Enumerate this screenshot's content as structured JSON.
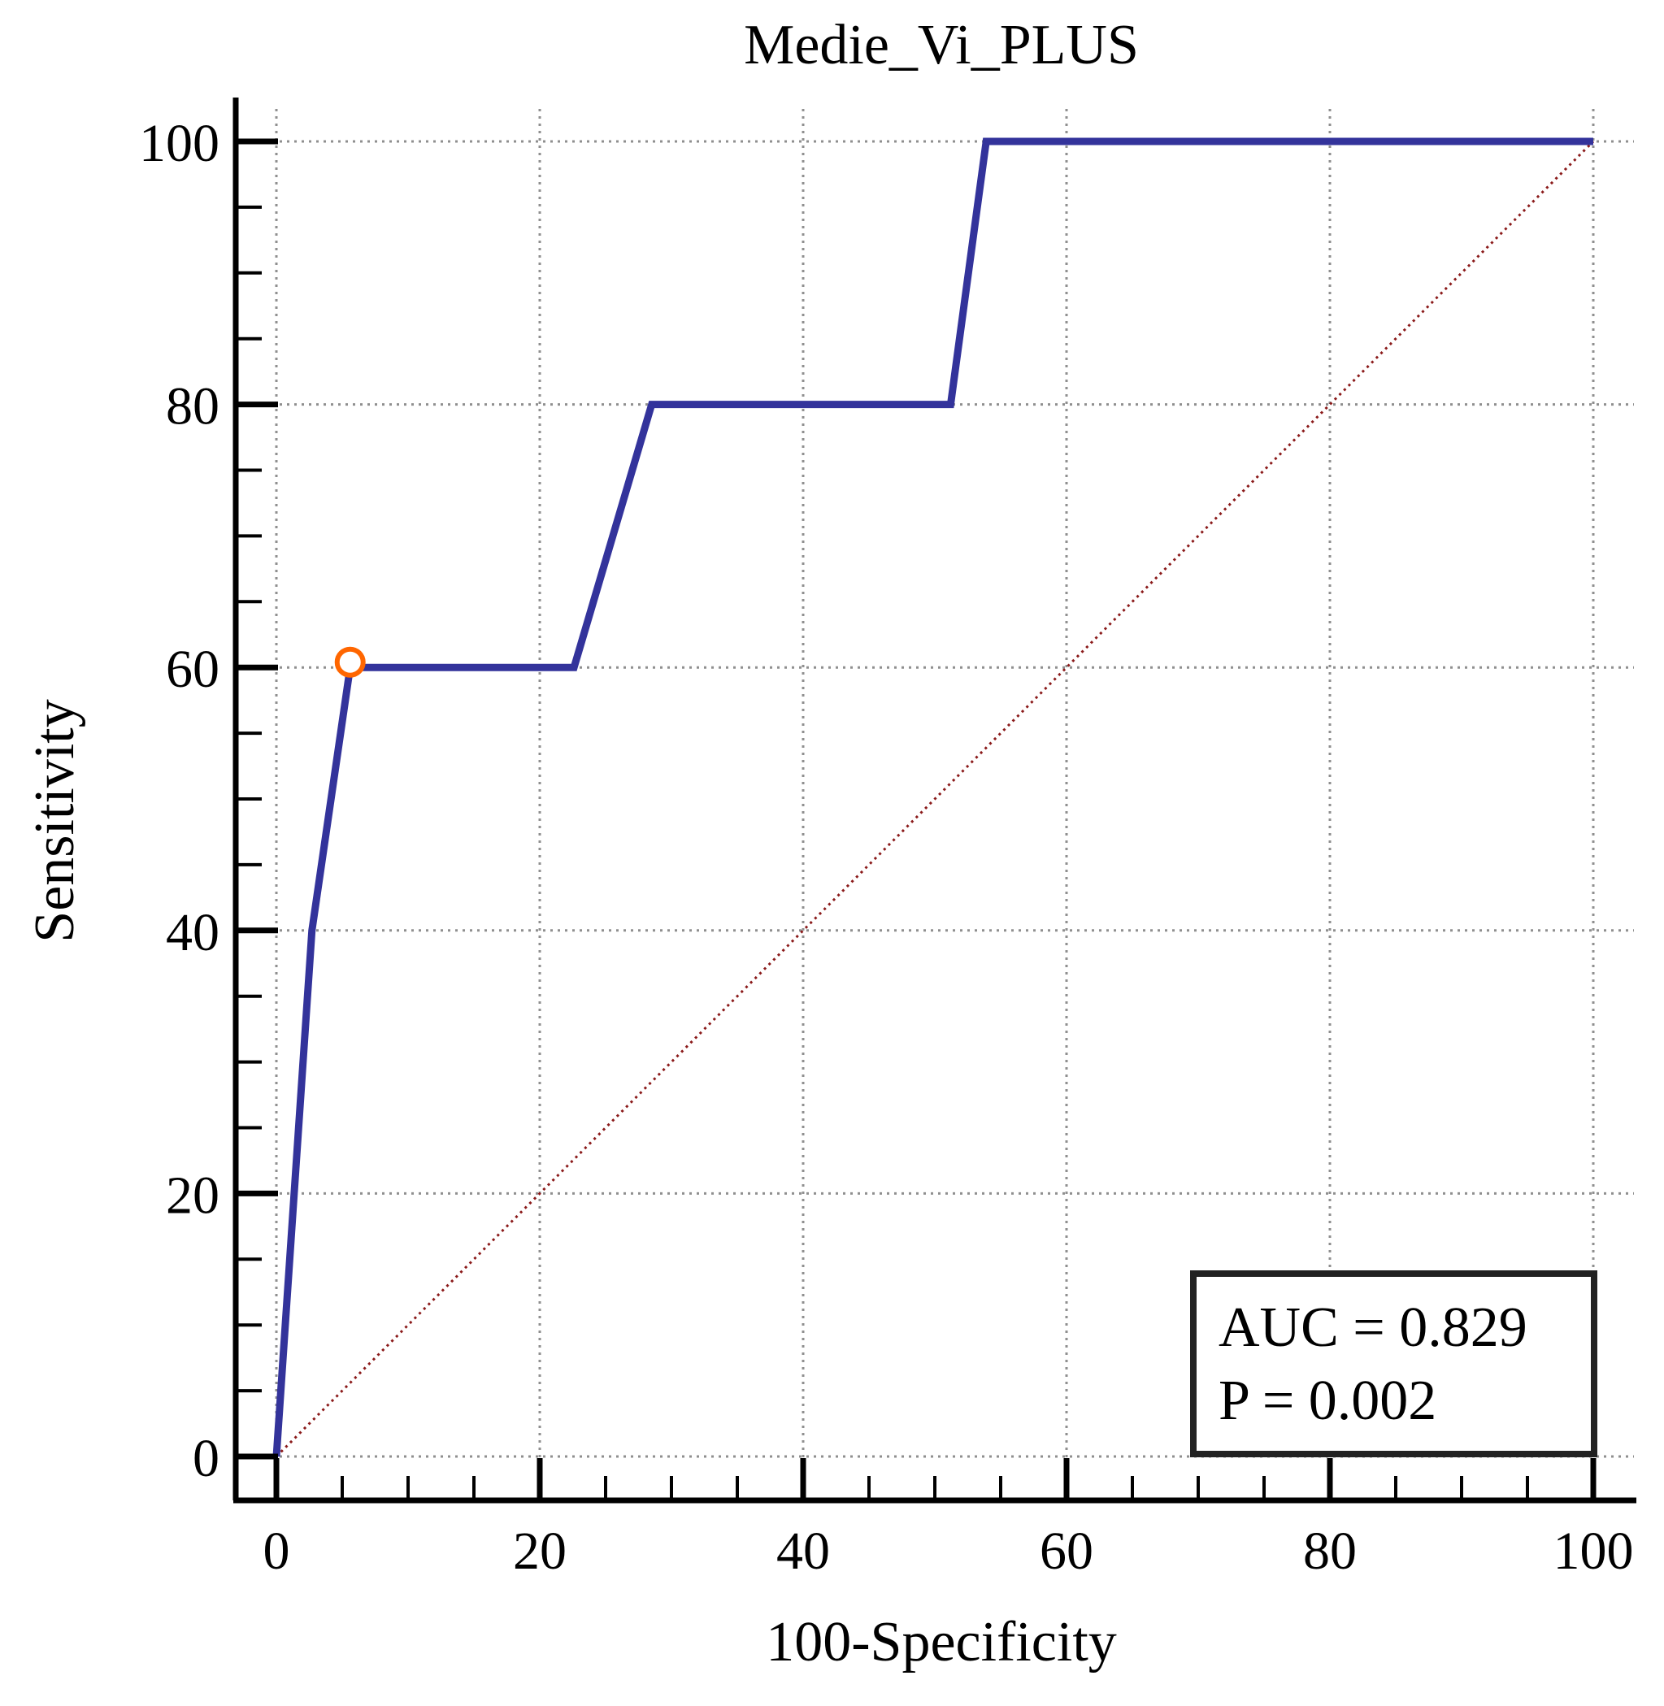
{
  "chart_data": {
    "type": "line",
    "title": "Medie_Vi_PLUS",
    "xlabel": "100-Specificity",
    "ylabel": "Sensitivity",
    "xlim": [
      0,
      100
    ],
    "ylim": [
      0,
      100
    ],
    "xticks": [
      "0",
      "20",
      "40",
      "60",
      "80",
      "100"
    ],
    "yticks": [
      "0",
      "20",
      "40",
      "60",
      "80",
      "100"
    ],
    "grid": true,
    "series": [
      {
        "x": [
          0,
          2.7,
          5.6,
          22.6,
          28.5,
          51.2,
          53.9,
          100
        ],
        "y": [
          0,
          40,
          60,
          60,
          80,
          80,
          100,
          100
        ],
        "color": "#33339b"
      }
    ],
    "reference_line": {
      "x": [
        0,
        100
      ],
      "y": [
        0,
        100
      ],
      "color": "#8b1a1a",
      "style": "dotted"
    },
    "optimal_point": {
      "x": 5.6,
      "y": 60.4,
      "color": "#ff6600"
    },
    "annotations": [
      {
        "label": "AUC = 0.829"
      },
      {
        "label": "P = 0.002"
      }
    ],
    "legend_position": "bottom-right"
  }
}
